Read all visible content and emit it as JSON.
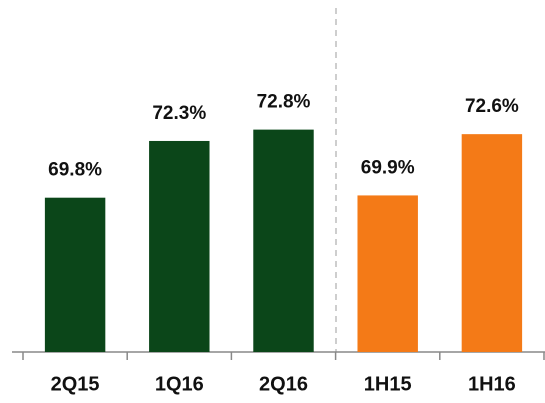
{
  "chart_data": {
    "type": "bar",
    "categories": [
      "2Q15",
      "1Q16",
      "2Q16",
      "1H15",
      "1H16"
    ],
    "values": [
      69.8,
      72.3,
      72.8,
      69.9,
      72.6
    ],
    "value_labels": [
      "69.8%",
      "72.3%",
      "72.8%",
      "69.9%",
      "72.6%"
    ],
    "colors": [
      "#0b4619",
      "#0b4619",
      "#0b4619",
      "#f47a17",
      "#f47a17"
    ],
    "ylim": [
      63,
      76
    ]
  }
}
